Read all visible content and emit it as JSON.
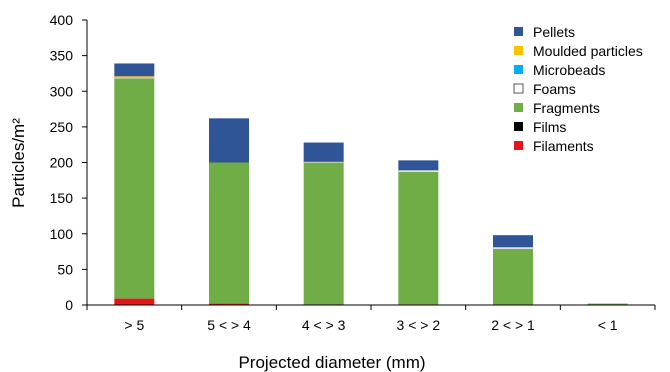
{
  "chart_data": {
    "type": "bar",
    "stacked": true,
    "categories": [
      "> 5",
      "5 < > 4",
      "4 < > 3",
      "3 < > 2",
      "2 < > 1",
      "< 1"
    ],
    "series": [
      {
        "name": "Filaments",
        "color": "#e8141c",
        "values": [
          9,
          2,
          0,
          1,
          0,
          0
        ]
      },
      {
        "name": "Films",
        "color": "#000000",
        "values": [
          0,
          0,
          1,
          0,
          0,
          0
        ]
      },
      {
        "name": "Fragments",
        "color": "#70ad47",
        "values": [
          309,
          198,
          199,
          186,
          79,
          2
        ]
      },
      {
        "name": "Foams",
        "color": "#ffffff",
        "values": [
          1,
          0,
          1,
          2,
          2,
          0
        ]
      },
      {
        "name": "Microbeads",
        "color": "#00b0f0",
        "values": [
          0,
          0,
          0,
          0,
          0,
          0
        ]
      },
      {
        "name": "Moulded particles",
        "color": "#ffc000",
        "values": [
          2,
          0,
          0,
          0,
          0,
          0
        ]
      },
      {
        "name": "Pellets",
        "color": "#2f5597",
        "values": [
          18,
          62,
          27,
          14,
          17,
          0
        ]
      }
    ],
    "legend_order": [
      "Pellets",
      "Moulded particles",
      "Microbeads",
      "Foams",
      "Fragments",
      "Films",
      "Filaments"
    ],
    "legend_placement": "top-right",
    "ylabel": "Particles/m²",
    "xlabel": "Projected diameter (mm)",
    "ylim": [
      0,
      400
    ],
    "yticks": [
      0,
      50,
      100,
      150,
      200,
      250,
      300,
      350,
      400
    ],
    "grid": false
  }
}
